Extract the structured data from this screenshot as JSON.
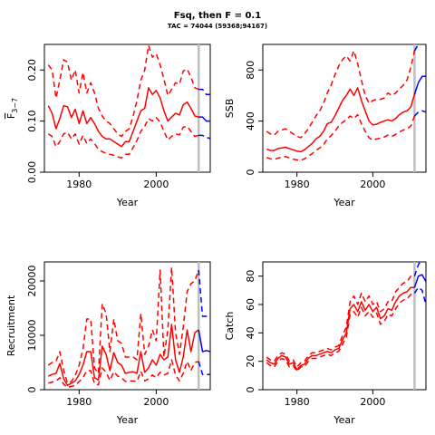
{
  "title": "Fsq, then F = 0.1",
  "subtitle": "TAC = 74044 (59368;94167)",
  "colors": {
    "hist": "#ff0000",
    "proj": "#0000ff",
    "vline": "#bebebe",
    "axis": "#000000"
  },
  "chart_data": [
    {
      "type": "line",
      "id": "fbar",
      "xlabel": "Year",
      "ylabel": "F",
      "ylabel_subscript": "3−7",
      "xlim": [
        1971,
        2014
      ],
      "ylim": [
        0,
        0.25
      ],
      "xticks": [
        1980,
        2000
      ],
      "yticks": [
        0.0,
        0.1,
        0.2
      ],
      "ytick_labels": [
        "0.00",
        "0.10",
        "0.20"
      ],
      "vline_x": 2011,
      "series": [
        {
          "role": "median",
          "years_from": 1972,
          "values": [
            0.13,
            0.115,
            0.085,
            0.105,
            0.13,
            0.128,
            0.107,
            0.123,
            0.095,
            0.12,
            0.095,
            0.107,
            0.095,
            0.08,
            0.07,
            0.065,
            0.065,
            0.06,
            0.055,
            0.05,
            0.06,
            0.06,
            0.08,
            0.1,
            0.12,
            0.125,
            0.165,
            0.152,
            0.16,
            0.145,
            0.12,
            0.1,
            0.108,
            0.115,
            0.112,
            0.132,
            0.137,
            0.125,
            0.11,
            0.108
          ]
        },
        {
          "role": "upper",
          "years_from": 1972,
          "values": [
            0.21,
            0.2,
            0.145,
            0.18,
            0.22,
            0.215,
            0.18,
            0.2,
            0.155,
            0.195,
            0.155,
            0.175,
            0.155,
            0.125,
            0.11,
            0.1,
            0.095,
            0.085,
            0.075,
            0.07,
            0.08,
            0.085,
            0.11,
            0.14,
            0.18,
            0.2,
            0.248,
            0.225,
            0.232,
            0.21,
            0.182,
            0.15,
            0.162,
            0.175,
            0.172,
            0.198,
            0.202,
            0.186,
            0.165,
            0.162
          ]
        },
        {
          "role": "lower",
          "years_from": 1972,
          "values": [
            0.075,
            0.07,
            0.05,
            0.06,
            0.075,
            0.078,
            0.065,
            0.075,
            0.055,
            0.072,
            0.056,
            0.065,
            0.056,
            0.045,
            0.04,
            0.037,
            0.035,
            0.033,
            0.03,
            0.028,
            0.035,
            0.035,
            0.048,
            0.062,
            0.08,
            0.09,
            0.105,
            0.1,
            0.107,
            0.098,
            0.08,
            0.063,
            0.07,
            0.075,
            0.073,
            0.088,
            0.09,
            0.08,
            0.07,
            0.072
          ]
        },
        {
          "role": "proj_median",
          "years_from": 2011,
          "values": [
            0.108,
            0.108,
            0.1,
            0.1
          ]
        },
        {
          "role": "proj_upper",
          "years_from": 2011,
          "values": [
            0.162,
            0.162,
            0.152,
            0.152
          ]
        },
        {
          "role": "proj_lower",
          "years_from": 2011,
          "values": [
            0.072,
            0.072,
            0.068,
            0.066
          ]
        }
      ]
    },
    {
      "type": "line",
      "id": "ssb",
      "xlabel": "Year",
      "ylabel": "SSB",
      "xlim": [
        1971,
        2014
      ],
      "ylim": [
        0,
        1000
      ],
      "xticks": [
        1980,
        2000
      ],
      "yticks": [
        0,
        400,
        800
      ],
      "ytick_labels": [
        "0",
        "400",
        "800"
      ],
      "vline_x": 2011,
      "series": [
        {
          "role": "median",
          "years_from": 1972,
          "values": [
            180,
            170,
            170,
            185,
            190,
            195,
            185,
            175,
            165,
            160,
            175,
            200,
            225,
            260,
            280,
            320,
            380,
            390,
            440,
            500,
            560,
            600,
            650,
            600,
            660,
            560,
            480,
            400,
            370,
            375,
            390,
            400,
            410,
            400,
            420,
            450,
            470,
            480,
            510,
            610
          ]
        },
        {
          "role": "upper",
          "years_from": 1972,
          "values": [
            320,
            300,
            290,
            320,
            330,
            340,
            320,
            300,
            280,
            270,
            300,
            340,
            390,
            440,
            480,
            540,
            620,
            680,
            760,
            830,
            880,
            910,
            870,
            950,
            850,
            720,
            600,
            540,
            560,
            570,
            570,
            580,
            620,
            600,
            620,
            650,
            680,
            720,
            820,
            950
          ]
        },
        {
          "role": "lower",
          "years_from": 1972,
          "values": [
            115,
            105,
            100,
            110,
            118,
            122,
            112,
            102,
            96,
            92,
            105,
            125,
            145,
            170,
            190,
            215,
            260,
            285,
            320,
            360,
            390,
            410,
            440,
            420,
            450,
            380,
            320,
            270,
            250,
            260,
            265,
            275,
            290,
            280,
            295,
            315,
            330,
            340,
            360,
            440
          ]
        },
        {
          "role": "proj_median",
          "years_from": 2011,
          "values": [
            610,
            700,
            750,
            750,
            745
          ]
        },
        {
          "role": "proj_upper",
          "years_from": 2011,
          "values": [
            950,
            1000,
            1040,
            1060,
            1070
          ]
        },
        {
          "role": "proj_lower",
          "years_from": 2011,
          "values": [
            440,
            470,
            480,
            470,
            460
          ]
        }
      ]
    },
    {
      "type": "line",
      "id": "recruitment",
      "xlabel": "Year",
      "ylabel": "Recruitment",
      "xlim": [
        1971,
        2014
      ],
      "ylim": [
        0,
        23500
      ],
      "xticks": [
        1980,
        2000
      ],
      "yticks": [
        0,
        10000,
        20000
      ],
      "ytick_labels": [
        "0",
        "10000",
        "20000"
      ],
      "vline_x": 2011,
      "series": [
        {
          "role": "median",
          "years_from": 1972,
          "values": [
            2500,
            2800,
            3000,
            4800,
            2000,
            800,
            1200,
            1600,
            2800,
            4500,
            7000,
            7000,
            2200,
            1800,
            8000,
            6500,
            3500,
            6800,
            5000,
            4500,
            3000,
            3200,
            3300,
            3000,
            7000,
            3200,
            4000,
            5500,
            4500,
            6500,
            5500,
            6000,
            12000,
            5500,
            3200,
            6000,
            11000,
            7000,
            10500,
            11000
          ]
        },
        {
          "role": "upper",
          "years_from": 1972,
          "values": [
            4500,
            5000,
            5200,
            7000,
            3500,
            1200,
            1500,
            2600,
            4500,
            7500,
            13000,
            13000,
            4000,
            3000,
            15800,
            14000,
            7000,
            13000,
            9000,
            8500,
            6000,
            6000,
            6000,
            5500,
            14000,
            6500,
            8000,
            11000,
            9000,
            22000,
            6000,
            11000,
            22500,
            10500,
            6500,
            11500,
            18000,
            19500,
            20000,
            22000
          ]
        },
        {
          "role": "lower",
          "years_from": 1972,
          "values": [
            1200,
            1400,
            1600,
            2200,
            1000,
            400,
            600,
            800,
            1500,
            2200,
            3500,
            3500,
            1100,
            900,
            4000,
            3200,
            1700,
            3300,
            2500,
            2200,
            1500,
            1600,
            1600,
            1500,
            3400,
            1600,
            2000,
            2700,
            2200,
            3200,
            2700,
            3000,
            5500,
            2700,
            1600,
            3000,
            5200,
            3500,
            5000,
            5200
          ]
        },
        {
          "role": "proj_median",
          "years_from": 2011,
          "values": [
            11000,
            7000,
            7200,
            7000
          ]
        },
        {
          "role": "proj_upper",
          "years_from": 2011,
          "values": [
            22000,
            13500,
            13500,
            13500
          ]
        },
        {
          "role": "proj_lower",
          "years_from": 2011,
          "values": [
            5200,
            2800,
            2800,
            2800
          ]
        }
      ]
    },
    {
      "type": "line",
      "id": "catch",
      "xlabel": "Year",
      "ylabel": "Catch",
      "xlim": [
        1971,
        2014
      ],
      "ylim": [
        0,
        90
      ],
      "xticks": [
        1980,
        2000
      ],
      "yticks": [
        0,
        20,
        40,
        60,
        80
      ],
      "ytick_labels": [
        "0",
        "20",
        "40",
        "60",
        "80"
      ],
      "vline_x": 2011,
      "series": [
        {
          "role": "median",
          "years_from": 1972,
          "values": [
            21,
            19,
            18,
            22,
            24,
            23,
            18,
            19,
            14,
            17,
            18,
            22,
            24,
            24,
            25,
            26,
            27,
            26,
            28,
            29,
            35,
            40,
            57,
            60,
            55,
            62,
            56,
            60,
            55,
            58,
            50,
            52,
            57,
            56,
            62,
            66,
            68,
            69,
            72,
            72
          ]
        },
        {
          "role": "upper",
          "years_from": 1972,
          "values": [
            23,
            21,
            20,
            24,
            26,
            25,
            20,
            21,
            16,
            19,
            20,
            24,
            26,
            26,
            27,
            28,
            29,
            28,
            30,
            31,
            38,
            44,
            62,
            66,
            60,
            68,
            62,
            66,
            60,
            62,
            55,
            57,
            62,
            62,
            69,
            72,
            75,
            76,
            80,
            80
          ]
        },
        {
          "role": "lower",
          "years_from": 1972,
          "values": [
            19,
            17,
            16,
            20,
            22,
            21,
            16,
            17,
            13,
            16,
            16,
            20,
            22,
            22,
            23,
            24,
            25,
            24,
            26,
            27,
            32,
            37,
            53,
            55,
            51,
            58,
            52,
            55,
            51,
            54,
            46,
            48,
            53,
            52,
            57,
            61,
            63,
            64,
            67,
            68
          ]
        },
        {
          "role": "proj_median",
          "years_from": 2011,
          "values": [
            72,
            80,
            81,
            76,
            76
          ]
        },
        {
          "role": "proj_upper",
          "years_from": 2011,
          "values": [
            80,
            88,
            92,
            92,
            92
          ]
        },
        {
          "role": "proj_lower",
          "years_from": 2011,
          "values": [
            68,
            72,
            70,
            60,
            57
          ]
        }
      ]
    }
  ]
}
